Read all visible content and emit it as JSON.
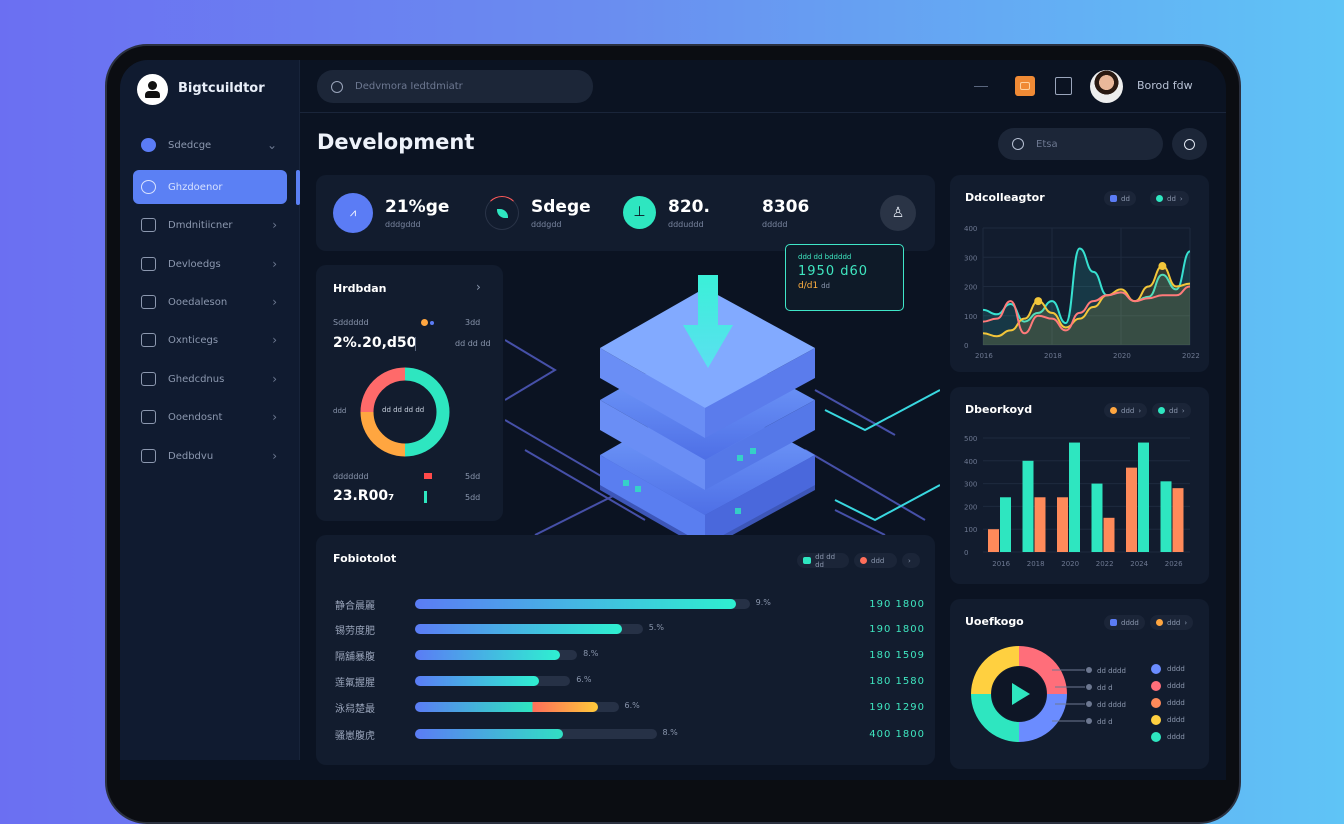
{
  "app": {
    "brand": "Bigtcuildtor",
    "user_name": "Borod fdw"
  },
  "topbar": {
    "search_placeholder": "Dedvmora Iedtdmiatr"
  },
  "sidebar": {
    "items": [
      {
        "label": "Sdedcge",
        "icon": "chat-icon",
        "expanded": true
      },
      {
        "label": "Ghzdoenor",
        "icon": "chat-icon",
        "active": true
      },
      {
        "label": "Dmdnitiicner",
        "icon": "monitor-icon"
      },
      {
        "label": "Devloedgs",
        "icon": "chart-icon"
      },
      {
        "label": "Ooedaleson",
        "icon": "folder-icon"
      },
      {
        "label": "Oxnticegs",
        "icon": "database-icon"
      },
      {
        "label": "Ghedcdnus",
        "icon": "clipboard-icon"
      },
      {
        "label": "Ooendosnt",
        "icon": "window-icon"
      },
      {
        "label": "Dedbdvu",
        "icon": "terminal-icon"
      }
    ]
  },
  "main": {
    "title": "Development",
    "search_placeholder": "Etsa",
    "stats": [
      {
        "value": "21%ge",
        "sub": "dddgddd",
        "icon": "chart-icon",
        "color": "#5b7cf5"
      },
      {
        "value": "Sdege",
        "sub": "dddgdd",
        "icon": "leaf-icon",
        "color": "#2ee6c0"
      },
      {
        "value": "820.",
        "sub": "ddduddd",
        "icon": "plug-icon",
        "color": "#2ee6c0"
      },
      {
        "value": "8306",
        "sub": "ddddd",
        "icon": "none"
      }
    ],
    "left_card": {
      "title": "Hrdbdan",
      "row1_label": "Sdddddd",
      "row1_right": "3dd",
      "row1_value": "2%.20,d50",
      "row1_tag": "dd dd dd",
      "donut_center": "dd dd dd dd",
      "donut_side": "ddd",
      "row2_label": "ddddddd",
      "row2_right": "5dd",
      "row2_value": "23.R00₇",
      "row2_tag": "5dd",
      "donut": [
        {
          "value": 50,
          "color": "#2ee6c0"
        },
        {
          "value": 25,
          "color": "#ffa640"
        },
        {
          "value": 25,
          "color": "#ff6a6a"
        }
      ]
    },
    "tooltip": {
      "label": "ddd dd bddddd",
      "value": "1950 d60",
      "sub_value": "d/d1",
      "sub_tag": "dd"
    },
    "progress": {
      "title": "Fobiotolot",
      "legend": [
        {
          "label": "dd dd dd",
          "color": "#2ee6c0"
        },
        {
          "label": "ddd",
          "color": "#ff6e5a"
        }
      ],
      "rows": [
        {
          "label": "静合晨麗",
          "fill": 0.93,
          "track": 0.97,
          "pct": "9.%",
          "value": "190 1800",
          "split": null
        },
        {
          "label": "锡劳度肥",
          "fill": 0.6,
          "track": 0.66,
          "pct": "5.%",
          "value": "190 1800",
          "split": null
        },
        {
          "label": "隔舖暴腹",
          "fill": 0.42,
          "track": 0.47,
          "pct": "8.%",
          "value": "180 1509",
          "split": null
        },
        {
          "label": "莲氟握腥",
          "fill": 0.36,
          "track": 0.45,
          "pct": "6.%",
          "value": "180 1580",
          "split": null
        },
        {
          "label": "泳舄楚最",
          "fill": 0.53,
          "track": 0.59,
          "pct": "6.%",
          "value": "190 1290",
          "split": 0.34
        },
        {
          "label": "骚崽腹虎",
          "fill": 0.43,
          "track": 0.7,
          "pct": "8.%",
          "value": "400 1800",
          "split": 0.46
        }
      ]
    }
  },
  "right": {
    "line_card": {
      "title": "Ddcolleagtor",
      "legend": [
        {
          "label": "dd",
          "color": "#5b7cf5"
        },
        {
          "label": "dd",
          "color": "#2ee6c0"
        }
      ]
    },
    "bar_card": {
      "title": "Dbeorkoyd",
      "legend": [
        {
          "label": "ddd",
          "color": "#ffa640"
        },
        {
          "label": "dd",
          "color": "#2ee6c0"
        }
      ]
    },
    "pie_card": {
      "title": "Uoefkogo",
      "legend": [
        {
          "label": "dddd",
          "color": "#5b7cf5"
        },
        {
          "label": "ddd",
          "color": "#ffa640"
        }
      ],
      "callouts": [
        "dd dddd",
        "dd d",
        "dd dddd",
        "dd d"
      ],
      "items": [
        {
          "label": "dddd",
          "color": "#6b8cff"
        },
        {
          "label": "dddd",
          "color": "#ff6e7a"
        },
        {
          "label": "dddd",
          "color": "#ff8a5a"
        },
        {
          "label": "dddd",
          "color": "#ffd040"
        },
        {
          "label": "dddd",
          "color": "#2ee6c0"
        }
      ]
    }
  },
  "chart_data": [
    {
      "type": "line",
      "title": "Ddcolleagtor",
      "ylim": [
        0,
        400
      ],
      "yticks": [
        "400",
        "300",
        "200",
        "100",
        "0"
      ],
      "xticks": [
        "2016",
        "2018",
        "2020",
        "2022"
      ],
      "series": [
        {
          "color": "#37e0d0",
          "values": [
            120,
            105,
            140,
            80,
            110,
            150,
            75,
            330,
            250,
            170,
            180,
            150,
            165,
            240,
            190,
            320
          ]
        },
        {
          "color": "#f3c63a",
          "values": [
            40,
            30,
            50,
            90,
            150,
            110,
            60,
            90,
            130,
            170,
            190,
            150,
            200,
            270,
            200,
            210
          ]
        },
        {
          "color": "#ff7a7a",
          "values": [
            80,
            90,
            150,
            40,
            100,
            90,
            50,
            110,
            150,
            170,
            180,
            150,
            160,
            170,
            170,
            200
          ]
        }
      ]
    },
    {
      "type": "bar",
      "title": "Dbeorkoyd",
      "ylim": [
        0,
        500
      ],
      "yticks": [
        "500",
        "400",
        "300",
        "200",
        "100",
        "0"
      ],
      "categories": [
        "2016",
        "2018",
        "2020",
        "2022",
        "2024",
        "2026"
      ],
      "series": [
        {
          "color": "#ff8a5a",
          "values": [
            100,
            240,
            240,
            150,
            370,
            280
          ]
        },
        {
          "color": "#2ee6c0",
          "values": [
            240,
            400,
            480,
            300,
            480,
            310
          ]
        }
      ]
    },
    {
      "type": "pie",
      "title": "Uoefkogo",
      "values": [
        25,
        25,
        25,
        25
      ],
      "colors": [
        "#ffd040",
        "#ff6e7a",
        "#6b8cff",
        "#2ee6c0"
      ]
    }
  ]
}
